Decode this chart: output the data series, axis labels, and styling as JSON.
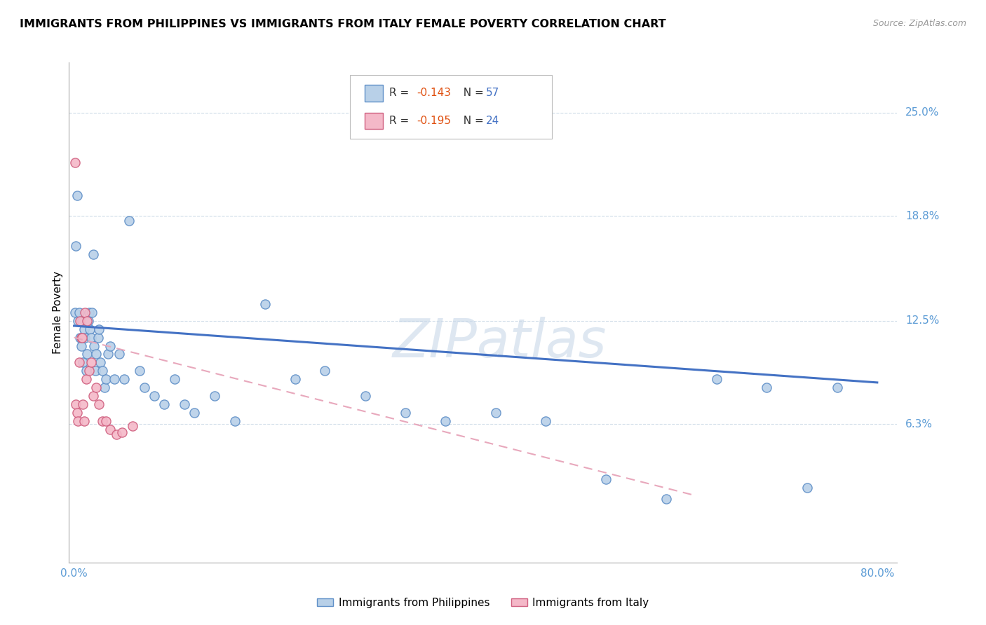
{
  "title": "IMMIGRANTS FROM PHILIPPINES VS IMMIGRANTS FROM ITALY FEMALE POVERTY CORRELATION CHART",
  "source": "Source: ZipAtlas.com",
  "ylabel": "Female Poverty",
  "ytick_labels": [
    "25.0%",
    "18.8%",
    "12.5%",
    "6.3%"
  ],
  "ytick_values": [
    0.25,
    0.188,
    0.125,
    0.063
  ],
  "xtick_labels": [
    "0.0%",
    "80.0%"
  ],
  "xtick_values": [
    0.0,
    0.8
  ],
  "xlim": [
    -0.005,
    0.82
  ],
  "ylim": [
    -0.02,
    0.28
  ],
  "color_phil_fill": "#b8d0e8",
  "color_phil_edge": "#6090c8",
  "color_italy_fill": "#f4b8c8",
  "color_italy_edge": "#d06080",
  "color_phil_line": "#4472c4",
  "color_italy_line": "#e8a8bc",
  "color_axis_labels": "#5b9bd5",
  "color_grid": "#d0dce8",
  "watermark": "ZIPatlas",
  "legend_r1_prefix": "R = ",
  "legend_r1_value": "-0.143",
  "legend_r1_n": "  N = ",
  "legend_r1_nval": "57",
  "legend_r2_prefix": "R = ",
  "legend_r2_value": "-0.195",
  "legend_r2_n": "  N = ",
  "legend_r2_nval": "24",
  "legend_label1": "Immigrants from Philippines",
  "legend_label2": "Immigrants from Italy",
  "phil_line_x0": 0.0,
  "phil_line_x1": 0.8,
  "phil_line_y0": 0.122,
  "phil_line_y1": 0.088,
  "italy_line_x0": 0.0,
  "italy_line_x1": 0.62,
  "italy_line_y0": 0.115,
  "italy_line_y1": 0.02,
  "phil_scatter_x": [
    0.001,
    0.002,
    0.003,
    0.004,
    0.005,
    0.006,
    0.007,
    0.008,
    0.009,
    0.01,
    0.011,
    0.012,
    0.013,
    0.014,
    0.015,
    0.016,
    0.017,
    0.018,
    0.019,
    0.02,
    0.021,
    0.022,
    0.024,
    0.025,
    0.026,
    0.028,
    0.03,
    0.032,
    0.034,
    0.036,
    0.04,
    0.045,
    0.05,
    0.055,
    0.065,
    0.07,
    0.08,
    0.09,
    0.1,
    0.11,
    0.12,
    0.14,
    0.16,
    0.19,
    0.22,
    0.25,
    0.29,
    0.33,
    0.37,
    0.42,
    0.47,
    0.53,
    0.59,
    0.64,
    0.69,
    0.73,
    0.76
  ],
  "phil_scatter_y": [
    0.13,
    0.17,
    0.2,
    0.125,
    0.13,
    0.115,
    0.11,
    0.125,
    0.1,
    0.12,
    0.115,
    0.095,
    0.105,
    0.125,
    0.13,
    0.12,
    0.115,
    0.13,
    0.165,
    0.11,
    0.095,
    0.105,
    0.115,
    0.12,
    0.1,
    0.095,
    0.085,
    0.09,
    0.105,
    0.11,
    0.09,
    0.105,
    0.09,
    0.185,
    0.095,
    0.085,
    0.08,
    0.075,
    0.09,
    0.075,
    0.07,
    0.08,
    0.065,
    0.135,
    0.09,
    0.095,
    0.08,
    0.07,
    0.065,
    0.07,
    0.065,
    0.03,
    0.018,
    0.09,
    0.085,
    0.025,
    0.085
  ],
  "italy_scatter_x": [
    0.001,
    0.002,
    0.003,
    0.004,
    0.005,
    0.006,
    0.007,
    0.008,
    0.009,
    0.01,
    0.011,
    0.012,
    0.013,
    0.015,
    0.017,
    0.019,
    0.022,
    0.025,
    0.028,
    0.032,
    0.036,
    0.042,
    0.048,
    0.058
  ],
  "italy_scatter_y": [
    0.22,
    0.075,
    0.07,
    0.065,
    0.1,
    0.125,
    0.115,
    0.115,
    0.075,
    0.065,
    0.13,
    0.09,
    0.125,
    0.095,
    0.1,
    0.08,
    0.085,
    0.075,
    0.065,
    0.065,
    0.06,
    0.057,
    0.058,
    0.062
  ]
}
